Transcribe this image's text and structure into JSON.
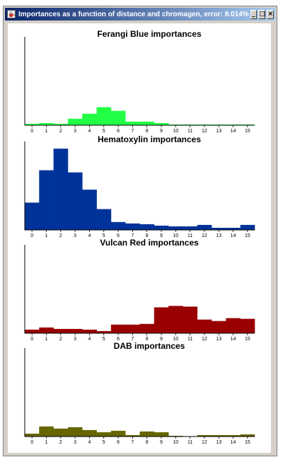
{
  "window": {
    "title": "Importances as a function of distance and chromagen, error: 8.014%",
    "minimize_glyph": "_",
    "maximize_glyph": "□",
    "close_glyph": "×",
    "icon": "java-coffee-icon"
  },
  "chart_data": [
    {
      "type": "bar",
      "title": "Ferangi Blue importances",
      "color": "#22ff44",
      "categories": [
        "0",
        "1",
        "2",
        "3",
        "4",
        "5",
        "6",
        "7",
        "8",
        "9",
        "10",
        "11",
        "12",
        "13",
        "14",
        "15"
      ],
      "values": [
        2,
        3,
        2,
        9,
        16,
        25,
        20,
        5,
        5,
        3,
        1,
        1,
        1,
        1,
        1,
        1
      ],
      "ylim": [
        0,
        120
      ]
    },
    {
      "type": "bar",
      "title": "Hematoxylin importances",
      "color": "#003399",
      "categories": [
        "0",
        "1",
        "2",
        "3",
        "4",
        "5",
        "6",
        "7",
        "8",
        "9",
        "10",
        "11",
        "12",
        "13",
        "14",
        "15"
      ],
      "values": [
        38,
        83,
        113,
        80,
        56,
        29,
        11,
        9,
        8,
        6,
        5,
        5,
        7,
        3,
        3,
        7
      ],
      "ylim": [
        0,
        120
      ]
    },
    {
      "type": "bar",
      "title": "Vulcan Red importances",
      "color": "#990000",
      "categories": [
        "0",
        "1",
        "2",
        "3",
        "4",
        "5",
        "6",
        "7",
        "8",
        "9",
        "10",
        "11",
        "12",
        "13",
        "14",
        "15"
      ],
      "values": [
        5,
        8,
        6,
        6,
        5,
        3,
        12,
        12,
        13,
        36,
        38,
        37,
        19,
        17,
        21,
        20
      ],
      "ylim": [
        0,
        120
      ]
    },
    {
      "type": "bar",
      "title": "DAB importances",
      "color": "#666600",
      "categories": [
        "0",
        "1",
        "2",
        "3",
        "4",
        "5",
        "6",
        "7",
        "8",
        "9",
        "10",
        "11",
        "12",
        "13",
        "14",
        "15"
      ],
      "values": [
        4,
        14,
        11,
        13,
        9,
        6,
        8,
        2,
        7,
        6,
        1,
        0,
        2,
        2,
        2,
        3
      ],
      "ylim": [
        0,
        120
      ]
    }
  ]
}
